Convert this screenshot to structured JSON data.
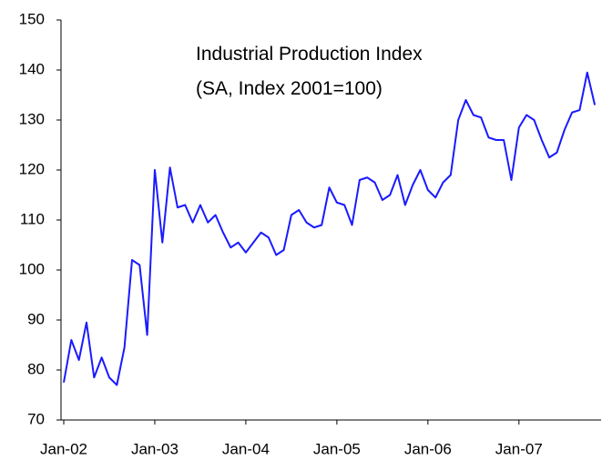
{
  "chart_data": {
    "type": "line",
    "title": "Industrial Production Index",
    "subtitle": "(SA, Index 2001=100)",
    "categories": [
      "Jan-02",
      null,
      null,
      null,
      null,
      null,
      null,
      null,
      null,
      null,
      null,
      null,
      "Jan-03",
      null,
      null,
      null,
      null,
      null,
      null,
      null,
      null,
      null,
      null,
      null,
      "Jan-04",
      null,
      null,
      null,
      null,
      null,
      null,
      null,
      null,
      null,
      null,
      null,
      "Jan-05",
      null,
      null,
      null,
      null,
      null,
      null,
      null,
      null,
      null,
      null,
      null,
      "Jan-06",
      null,
      null,
      null,
      null,
      null,
      null,
      null,
      null,
      null,
      null,
      null,
      "Jan-07",
      null,
      null,
      null,
      null,
      null,
      null,
      null,
      null,
      null,
      null
    ],
    "series": [
      {
        "name": "Industrial Production Index",
        "color": "#1a1aff",
        "values": [
          77.5,
          86,
          82,
          89.5,
          78.5,
          82.5,
          78.5,
          77,
          84.5,
          102,
          101,
          87,
          120,
          105.5,
          120.5,
          112.5,
          113,
          109.5,
          113,
          109.5,
          111,
          107.5,
          104.5,
          105.5,
          103.5,
          105.5,
          107.5,
          106.5,
          103,
          104,
          111,
          112,
          109.5,
          108.5,
          109,
          116.5,
          113.5,
          113,
          109,
          118,
          118.5,
          117.5,
          114,
          115,
          119,
          113,
          117,
          120,
          116,
          114.5,
          117.5,
          119,
          130,
          134,
          131,
          130.5,
          126.5,
          126,
          126,
          118,
          128.5,
          131,
          130,
          126,
          122.5,
          123.5,
          128,
          131.5,
          132,
          139.5,
          133
        ]
      }
    ],
    "ylim": [
      70,
      150
    ],
    "yticks": [
      70,
      80,
      90,
      100,
      110,
      120,
      130,
      140,
      150
    ]
  }
}
